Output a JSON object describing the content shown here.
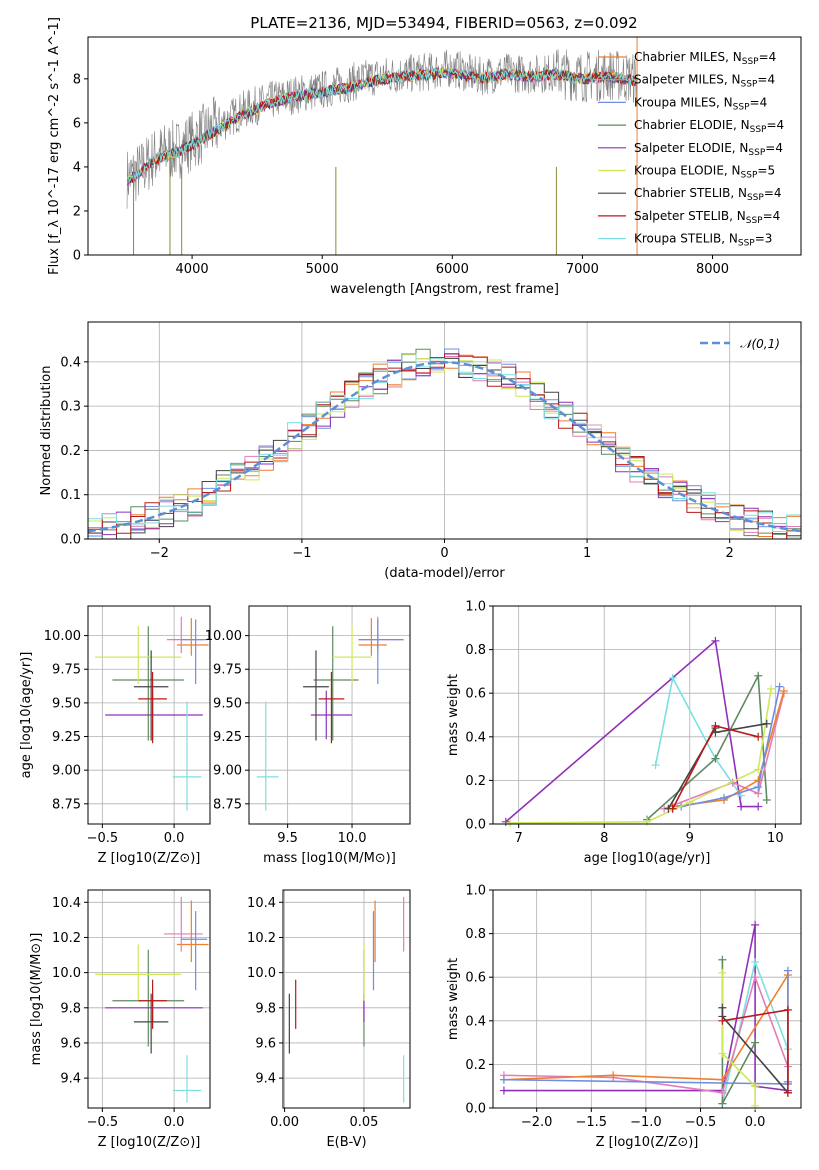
{
  "figure": {
    "title": "PLATE=2136, MJD=53494, FIBERID=0563, z=0.092"
  },
  "models": [
    {
      "name": "Chabrier MILES",
      "nssp": "4",
      "color": "#ee7f2e"
    },
    {
      "name": "Salpeter MILES",
      "nssp": "4",
      "color": "#e47cb8"
    },
    {
      "name": "Kroupa MILES",
      "nssp": "4",
      "color": "#6e8fdf"
    },
    {
      "name": "Chabrier ELODIE",
      "nssp": "4",
      "color": "#5f8a5f"
    },
    {
      "name": "Salpeter ELODIE",
      "nssp": "4",
      "color": "#9030b8"
    },
    {
      "name": "Kroupa ELODIE",
      "nssp": "5",
      "color": "#cfe85a"
    },
    {
      "name": "Chabrier STELIB",
      "nssp": "4",
      "color": "#444444"
    },
    {
      "name": "Salpeter STELIB",
      "nssp": "4",
      "color": "#b81a1a"
    },
    {
      "name": "Kroupa STELIB",
      "nssp": "3",
      "color": "#7cdfe2"
    }
  ],
  "chart_data": [
    {
      "id": "spectrum",
      "type": "line",
      "xlabel": "wavelength [Angstrom, rest frame]",
      "ylabel": "Flux [f_λ 10^-17 erg cm^-2 s^-1 A^-1]",
      "xlim": [
        3200,
        8680
      ],
      "ylim": [
        0,
        9.9
      ],
      "xticks": [
        4000,
        5000,
        6000,
        7000,
        8000
      ],
      "yticks": [
        0,
        2,
        4,
        6,
        8
      ],
      "data_color": "#808080",
      "legend_position": "right",
      "data_curve": {
        "x": [
          3500,
          3600,
          3700,
          3800,
          3900,
          4000,
          4200,
          4400,
          4600,
          4800,
          5000,
          5200,
          5400,
          5600,
          5800,
          6000,
          6200,
          6400,
          6600,
          6800,
          7000,
          7200,
          7420
        ],
        "y": [
          3.5,
          3.8,
          4.4,
          4.7,
          4.8,
          5.2,
          5.9,
          6.6,
          7.0,
          7.3,
          7.5,
          7.8,
          8.1,
          8.2,
          8.3,
          8.5,
          8.1,
          8.3,
          8.2,
          8.3,
          8.1,
          8.2,
          8.0
        ]
      },
      "model_curve": {
        "x": [
          3500,
          3600,
          3700,
          3800,
          3900,
          4000,
          4200,
          4400,
          4600,
          4800,
          5000,
          5200,
          5400,
          5600,
          5800,
          6000,
          6200,
          6400,
          6600,
          6800,
          7000,
          7200,
          7420
        ],
        "y": [
          3.4,
          3.7,
          4.3,
          4.5,
          4.7,
          5.0,
          5.7,
          6.4,
          6.9,
          7.2,
          7.4,
          7.6,
          7.9,
          8.1,
          8.2,
          8.3,
          8.0,
          8.2,
          8.1,
          8.2,
          8.0,
          8.1,
          7.9
        ]
      }
    },
    {
      "id": "residuals",
      "type": "line",
      "xlabel": "(data-model)/error",
      "ylabel": "Normed distribution",
      "xlim": [
        -2.5,
        2.5
      ],
      "ylim": [
        0,
        0.49
      ],
      "xticks": [
        -2,
        -1,
        0,
        1,
        2
      ],
      "yticks": [
        0.0,
        0.1,
        0.2,
        0.3,
        0.4
      ],
      "reference": {
        "name": "𝒩(0,1)",
        "color": "#5b8fd6"
      },
      "bin_width": 0.1
    },
    {
      "id": "age-vs-Z",
      "type": "scatter",
      "xlabel": "Z [log10(Z/Z⊙)]",
      "ylabel": "age  [log10(age/yr)]",
      "xlim": [
        -0.6,
        0.25
      ],
      "ylim": [
        8.6,
        10.22
      ],
      "xticks": [
        -0.5,
        0.0
      ],
      "yticks": [
        8.75,
        9.0,
        9.25,
        9.5,
        9.75,
        10.0
      ],
      "points": [
        {
          "x": 0.12,
          "y": 9.93,
          "xerr": [
            0.1,
            0.12
          ],
          "yerr": [
            0.08,
            0.2
          ],
          "color": "#ee7f2e"
        },
        {
          "x": 0.05,
          "y": 9.97,
          "xerr": [
            0.1,
            0.15
          ],
          "yerr": [
            0.1,
            0.17
          ],
          "color": "#e47cb8"
        },
        {
          "x": 0.15,
          "y": 9.97,
          "xerr": [
            0.1,
            0.08
          ],
          "yerr": [
            0.33,
            0.15
          ],
          "color": "#6e8fdf"
        },
        {
          "x": -0.18,
          "y": 9.67,
          "xerr": [
            0.25,
            0.25
          ],
          "yerr": [
            0.45,
            0.4
          ],
          "color": "#5f8a5f"
        },
        {
          "x": -0.15,
          "y": 9.41,
          "xerr": [
            0.33,
            0.35
          ],
          "yerr": [
            0.18,
            0.18
          ],
          "color": "#9030b8"
        },
        {
          "x": -0.25,
          "y": 9.84,
          "xerr": [
            0.3,
            0.3
          ],
          "yerr": [
            0.2,
            0.23
          ],
          "color": "#cfe85a"
        },
        {
          "x": -0.16,
          "y": 9.62,
          "xerr": [
            0.12,
            0.12
          ],
          "yerr": [
            0.4,
            0.27
          ],
          "color": "#444444"
        },
        {
          "x": -0.15,
          "y": 9.53,
          "xerr": [
            0.1,
            0.1
          ],
          "yerr": [
            0.33,
            0.2
          ],
          "color": "#b81a1a"
        },
        {
          "x": 0.09,
          "y": 8.95,
          "xerr": [
            0.1,
            0.1
          ],
          "yerr": [
            0.25,
            0.56
          ],
          "color": "#7cdfe2"
        }
      ]
    },
    {
      "id": "age-vs-mass",
      "type": "scatter",
      "xlabel": "mass [log10(M/M⊙)]",
      "ylabel": "",
      "xlim": [
        9.2,
        10.45
      ],
      "ylim": [
        8.6,
        10.22
      ],
      "xticks": [
        9.5,
        10.0
      ],
      "yticks": [
        8.75,
        9.0,
        9.25,
        9.5,
        9.75,
        10.0
      ],
      "points": [
        {
          "x": 10.15,
          "y": 9.93,
          "xerr": [
            0.1,
            0.12
          ],
          "yerr": [
            0.08,
            0.2
          ],
          "color": "#ee7f2e"
        },
        {
          "x": 10.2,
          "y": 9.97,
          "xerr": [
            0.15,
            0.2
          ],
          "yerr": [
            0.1,
            0.17
          ],
          "color": "#e47cb8"
        },
        {
          "x": 10.2,
          "y": 9.97,
          "xerr": [
            0.15,
            0.2
          ],
          "yerr": [
            0.33,
            0.15
          ],
          "color": "#6e8fdf"
        },
        {
          "x": 9.85,
          "y": 9.67,
          "xerr": [
            0.15,
            0.2
          ],
          "yerr": [
            0.45,
            0.4
          ],
          "color": "#5f8a5f"
        },
        {
          "x": 9.8,
          "y": 9.41,
          "xerr": [
            0.12,
            0.2
          ],
          "yerr": [
            0.18,
            0.18
          ],
          "color": "#9030b8"
        },
        {
          "x": 10.0,
          "y": 9.84,
          "xerr": [
            0.15,
            0.15
          ],
          "yerr": [
            0.2,
            0.23
          ],
          "color": "#cfe85a"
        },
        {
          "x": 9.72,
          "y": 9.62,
          "xerr": [
            0.1,
            0.1
          ],
          "yerr": [
            0.4,
            0.27
          ],
          "color": "#444444"
        },
        {
          "x": 9.84,
          "y": 9.53,
          "xerr": [
            0.1,
            0.1
          ],
          "yerr": [
            0.33,
            0.2
          ],
          "color": "#b81a1a"
        },
        {
          "x": 9.33,
          "y": 8.95,
          "xerr": [
            0.07,
            0.1
          ],
          "yerr": [
            0.25,
            0.56
          ],
          "color": "#7cdfe2"
        }
      ]
    },
    {
      "id": "weight-vs-age",
      "type": "line",
      "xlabel": "age  [log10(age/yr)]",
      "ylabel": "mass weight",
      "xlim": [
        6.7,
        10.3
      ],
      "ylim": [
        0,
        1.0
      ],
      "xticks": [
        7,
        8,
        9,
        10
      ],
      "yticks": [
        0.0,
        0.2,
        0.4,
        0.6,
        0.8,
        1.0
      ],
      "series": [
        {
          "color": "#9030b8",
          "x": [
            6.85,
            9.3,
            9.6,
            9.8
          ],
          "y": [
            0.01,
            0.84,
            0.08,
            0.08
          ]
        },
        {
          "color": "#7cdfe2",
          "x": [
            8.6,
            8.8,
            9.3,
            9.6
          ],
          "y": [
            0.27,
            0.67,
            0.3,
            0.13
          ]
        },
        {
          "color": "#5f8a5f",
          "x": [
            8.5,
            9.3,
            9.8,
            9.9
          ],
          "y": [
            0.02,
            0.3,
            0.68,
            0.11
          ]
        },
        {
          "color": "#e47cb8",
          "x": [
            8.7,
            9.5,
            9.8,
            10.1
          ],
          "y": [
            0.07,
            0.19,
            0.14,
            0.6
          ]
        },
        {
          "color": "#ee7f2e",
          "x": [
            8.8,
            9.4,
            9.8,
            10.1
          ],
          "y": [
            0.08,
            0.11,
            0.2,
            0.61
          ]
        },
        {
          "color": "#6e8fdf",
          "x": [
            8.9,
            9.4,
            9.8,
            10.05
          ],
          "y": [
            0.08,
            0.12,
            0.17,
            0.63
          ]
        },
        {
          "color": "#cfe85a",
          "x": [
            6.9,
            8.5,
            9.0,
            9.8,
            9.95
          ],
          "y": [
            0.005,
            0.01,
            0.1,
            0.25,
            0.62
          ]
        },
        {
          "color": "#444444",
          "x": [
            8.75,
            9.3,
            9.3,
            9.9
          ],
          "y": [
            0.07,
            0.44,
            0.42,
            0.46
          ]
        },
        {
          "color": "#b81a1a",
          "x": [
            8.8,
            9.3,
            9.8
          ],
          "y": [
            0.07,
            0.45,
            0.4
          ]
        }
      ]
    },
    {
      "id": "mass-vs-Z",
      "type": "scatter",
      "xlabel": "Z [log10(Z/Z⊙)]",
      "ylabel": "mass [log10(M/M⊙)]",
      "xlim": [
        -0.6,
        0.25
      ],
      "ylim": [
        9.23,
        10.47
      ],
      "xticks": [
        -0.5,
        0.0
      ],
      "yticks": [
        9.4,
        9.6,
        9.8,
        10.0,
        10.2,
        10.4
      ],
      "points": [
        {
          "x": 0.12,
          "y": 10.16,
          "xerr": [
            0.1,
            0.12
          ],
          "yerr": [
            0.1,
            0.25
          ],
          "color": "#ee7f2e"
        },
        {
          "x": 0.05,
          "y": 10.22,
          "xerr": [
            0.12,
            0.15
          ],
          "yerr": [
            0.1,
            0.21
          ],
          "color": "#e47cb8"
        },
        {
          "x": 0.15,
          "y": 10.19,
          "xerr": [
            0.1,
            0.08
          ],
          "yerr": [
            0.29,
            0.16
          ],
          "color": "#6e8fdf"
        },
        {
          "x": -0.18,
          "y": 9.84,
          "xerr": [
            0.25,
            0.25
          ],
          "yerr": [
            0.26,
            0.29
          ],
          "color": "#5f8a5f"
        },
        {
          "x": -0.15,
          "y": 9.8,
          "xerr": [
            0.33,
            0.35
          ],
          "yerr": [
            0.08,
            0.08
          ],
          "color": "#9030b8"
        },
        {
          "x": -0.25,
          "y": 9.99,
          "xerr": [
            0.3,
            0.3
          ],
          "yerr": [
            0.15,
            0.17
          ],
          "color": "#cfe85a"
        },
        {
          "x": -0.16,
          "y": 9.72,
          "xerr": [
            0.12,
            0.12
          ],
          "yerr": [
            0.18,
            0.16
          ],
          "color": "#444444"
        },
        {
          "x": -0.15,
          "y": 9.84,
          "xerr": [
            0.1,
            0.1
          ],
          "yerr": [
            0.16,
            0.12
          ],
          "color": "#b81a1a"
        },
        {
          "x": 0.09,
          "y": 9.33,
          "xerr": [
            0.1,
            0.1
          ],
          "yerr": [
            0.07,
            0.2
          ],
          "color": "#7cdfe2"
        }
      ]
    },
    {
      "id": "mass-vs-EBV",
      "type": "scatter",
      "xlabel": "E(B-V)",
      "ylabel": "",
      "xlim": [
        -0.001,
        0.079
      ],
      "ylim": [
        9.23,
        10.47
      ],
      "xticks": [
        0.0,
        0.05
      ],
      "xtick_labels": [
        "0.00",
        "0.05"
      ],
      "yticks": [
        9.4,
        9.6,
        9.8,
        10.0,
        10.2,
        10.4
      ],
      "points": [
        {
          "x": 0.057,
          "y": 10.16,
          "yerr": [
            0.1,
            0.25
          ],
          "color": "#ee7f2e"
        },
        {
          "x": 0.075,
          "y": 10.22,
          "yerr": [
            0.1,
            0.21
          ],
          "color": "#e47cb8"
        },
        {
          "x": 0.056,
          "y": 10.19,
          "yerr": [
            0.29,
            0.16
          ],
          "color": "#6e8fdf"
        },
        {
          "x": 0.05,
          "y": 9.84,
          "yerr": [
            0.26,
            0.29
          ],
          "color": "#5f8a5f"
        },
        {
          "x": 0.05,
          "y": 9.8,
          "yerr": [
            0.08,
            0.08
          ],
          "color": "#9030b8"
        },
        {
          "x": 0.05,
          "y": 9.99,
          "yerr": [
            0.15,
            0.17
          ],
          "color": "#cfe85a"
        },
        {
          "x": 0.003,
          "y": 9.72,
          "yerr": [
            0.18,
            0.16
          ],
          "color": "#444444"
        },
        {
          "x": 0.007,
          "y": 9.84,
          "yerr": [
            0.16,
            0.12
          ],
          "color": "#b81a1a"
        },
        {
          "x": 0.075,
          "y": 9.33,
          "yerr": [
            0.07,
            0.2
          ],
          "color": "#7cdfe2"
        }
      ]
    },
    {
      "id": "weight-vs-Z",
      "type": "line",
      "xlabel": "Z [log10(Z/Z⊙)]",
      "ylabel": "mass weight",
      "xlim": [
        -2.4,
        0.42
      ],
      "ylim": [
        0,
        1.0
      ],
      "xticks": [
        -2.0,
        -1.5,
        -1.0,
        -0.5,
        0.0
      ],
      "yticks": [
        0.0,
        0.2,
        0.4,
        0.6,
        0.8,
        1.0
      ],
      "series": [
        {
          "color": "#9030b8",
          "x": [
            -2.3,
            -0.3,
            0.0,
            0.0,
            0.3
          ],
          "y": [
            0.08,
            0.08,
            0.84,
            0.1,
            0.08
          ]
        },
        {
          "color": "#7cdfe2",
          "x": [
            -0.3,
            0.0,
            0.3,
            0.3
          ],
          "y": [
            0.02,
            0.67,
            0.27,
            0.12
          ]
        },
        {
          "color": "#5f8a5f",
          "x": [
            -0.3,
            -0.3,
            0.0
          ],
          "y": [
            0.68,
            0.02,
            0.3
          ]
        },
        {
          "color": "#e47cb8",
          "x": [
            -2.3,
            -1.3,
            -0.3,
            0.0,
            0.3
          ],
          "y": [
            0.15,
            0.14,
            0.07,
            0.6,
            0.19
          ]
        },
        {
          "color": "#ee7f2e",
          "x": [
            -2.3,
            -1.3,
            -0.3,
            0.3,
            0.3
          ],
          "y": [
            0.13,
            0.15,
            0.13,
            0.61,
            0.11
          ]
        },
        {
          "color": "#6e8fdf",
          "x": [
            -2.3,
            0.3,
            0.3,
            0.3
          ],
          "y": [
            0.13,
            0.11,
            0.63,
            0.12
          ]
        },
        {
          "color": "#cfe85a",
          "x": [
            -0.3,
            -0.3,
            0.0,
            0.0
          ],
          "y": [
            0.62,
            0.25,
            0.1,
            0.01
          ]
        },
        {
          "color": "#444444",
          "x": [
            -0.3,
            -0.3,
            0.3
          ],
          "y": [
            0.46,
            0.42,
            0.07
          ]
        },
        {
          "color": "#b81a1a",
          "x": [
            -0.3,
            0.3,
            0.3
          ],
          "y": [
            0.4,
            0.45,
            0.07
          ]
        }
      ]
    }
  ]
}
